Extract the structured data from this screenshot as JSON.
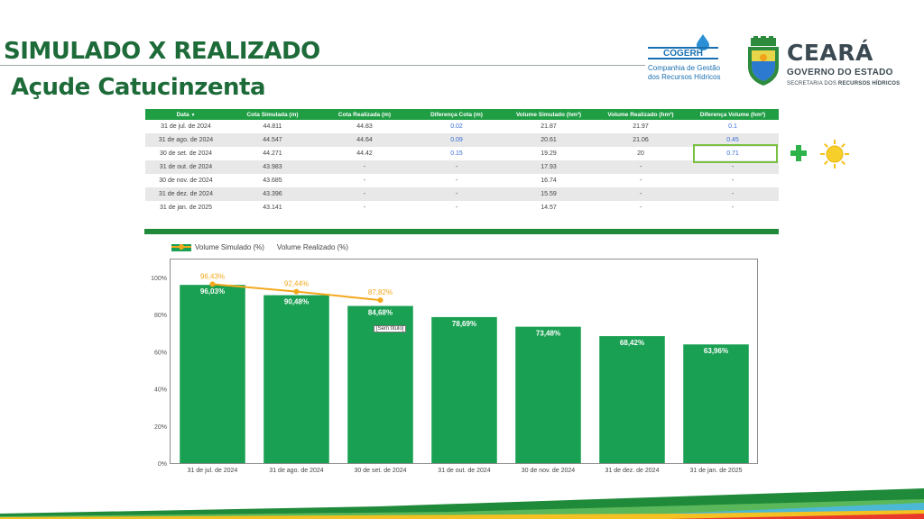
{
  "header": {
    "title": "SIMULADO X REALIZADO",
    "subtitle": "Açude Catucinzenta"
  },
  "logos": {
    "cogerh_name": "COGERH",
    "cogerh_line1": "Companhia de Gestão",
    "cogerh_line2": "dos Recursos Hídricos",
    "ceara_title": "CEARÁ",
    "ceara_sub": "GOVERNO DO ESTADO",
    "ceara_sub2_a": "SECRETARIA DOS ",
    "ceara_sub2_b": "RECURSOS HÍDRICOS"
  },
  "table": {
    "headers": [
      "Data",
      "Cota Simulada (m)",
      "Cota Realizada (m)",
      "Diferença Cota (m)",
      "Volume Simulado (hm³)",
      "Volume Realizado (hm³)",
      "Diferença Volume (hm³)"
    ],
    "sort_indicator": "▼",
    "rows": [
      [
        "31 de jul. de 2024",
        "44.811",
        "44.83",
        "0.02",
        "21.87",
        "21.97",
        "0.1"
      ],
      [
        "31 de ago. de 2024",
        "44.547",
        "44.64",
        "0.09",
        "20.61",
        "21.06",
        "0.45"
      ],
      [
        "30 de set. de 2024",
        "44.271",
        "44.42",
        "0.15",
        "19.29",
        "20",
        "0.71"
      ],
      [
        "31 de out. de 2024",
        "43.983",
        "-",
        "-",
        "17.93",
        "-",
        "-"
      ],
      [
        "30 de nov. de 2024",
        "43.685",
        "-",
        "-",
        "16.74",
        "-",
        "-"
      ],
      [
        "31 de dez. de 2024",
        "43.396",
        "-",
        "-",
        "15.59",
        "-",
        "-"
      ],
      [
        "31 de jan. de 2025",
        "43.141",
        "-",
        "-",
        "14.57",
        "-",
        "-"
      ]
    ]
  },
  "icons": {
    "plus": "plus-icon",
    "sun": "sun-icon"
  },
  "colors": {
    "bar": "#19a052",
    "line": "#f4a81d",
    "brand_green": "#1e6b3a",
    "table_header": "#1f9e43"
  },
  "chart_data": {
    "type": "bar",
    "categories": [
      "31 de jul. de 2024",
      "31 de ago. de 2024",
      "30 de set. de 2024",
      "31 de out. de 2024",
      "30 de nov. de 2024",
      "31 de dez. de 2024",
      "31 de jan. de 2025"
    ],
    "series": [
      {
        "name": "Volume Simulado (%)",
        "type": "bar",
        "values": [
          96.03,
          90.48,
          84.68,
          78.69,
          73.48,
          68.42,
          63.96
        ],
        "labels": [
          "96,03%",
          "90,48%",
          "84,68%",
          "78,69%",
          "73,48%",
          "68,42%",
          "63,96%"
        ]
      },
      {
        "name": "Volume Realizado (%)",
        "type": "line",
        "values": [
          96.43,
          92.44,
          87.82,
          null,
          null,
          null,
          null
        ],
        "labels": [
          "96,43%",
          "92,44%",
          "87,82%",
          "",
          "",
          "",
          ""
        ]
      }
    ],
    "yticks": [
      "0%",
      "20%",
      "40%",
      "60%",
      "80%",
      "100%"
    ],
    "ylim": [
      0,
      100
    ],
    "legend": "top-left",
    "tooltip": "[Sem título]"
  }
}
